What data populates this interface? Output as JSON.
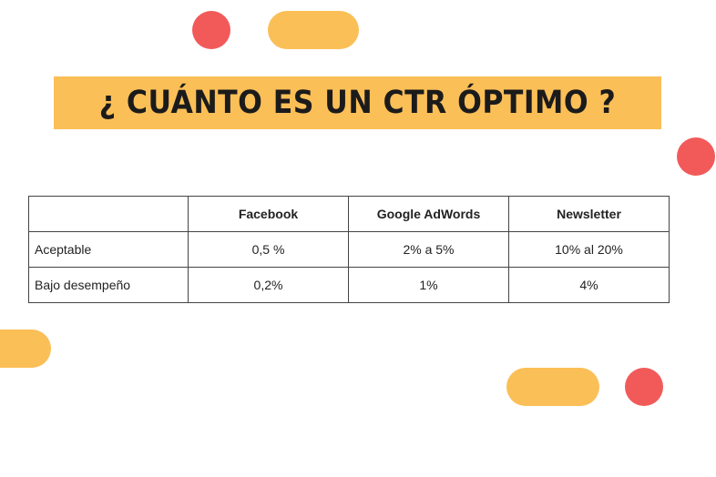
{
  "title": "¿ CUÁNTO ES UN CTR ÓPTIMO ?",
  "table": {
    "corner": "",
    "headers": [
      "Facebook",
      "Google AdWords",
      "Newsletter"
    ],
    "rows": [
      {
        "label": "Aceptable",
        "values": [
          "0,5 %",
          "2% a 5%",
          "10% al 20%"
        ]
      },
      {
        "label": "Bajo desempeño",
        "values": [
          "0,2%",
          "1%",
          "4%"
        ]
      }
    ]
  },
  "colors": {
    "accent_orange": "#fbbf57",
    "accent_red": "#f25a5a"
  }
}
